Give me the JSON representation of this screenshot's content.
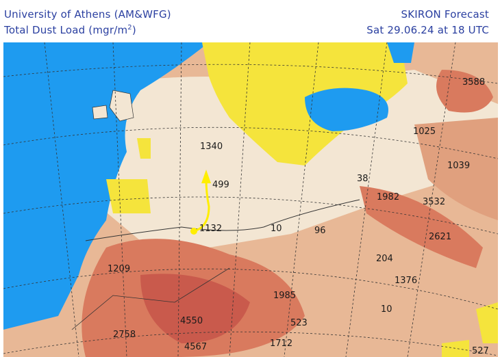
{
  "header": {
    "institution": "University of Athens (AM&WFG)",
    "product": "Total Dust Load (mgr/m",
    "product_superscript": "2",
    "product_close": ")",
    "model": "SKIRON Forecast",
    "valid_time": "Sat 29.06.24 at 18 UTC"
  },
  "colors": {
    "sea": "#1e9bf0",
    "low_dust_land": "#f5e43c",
    "light_dust": "#f3e6d3",
    "medium_dust": "#e8b896",
    "high_dust": "#d97a5e",
    "very_high_dust": "#c95a4c",
    "arrow": "#ffee00"
  },
  "map_labels": [
    "3588",
    "1025",
    "1039",
    "1340",
    "499",
    "38",
    "1982",
    "3532",
    "2621",
    "1132",
    "10",
    "96",
    "204",
    "1376",
    "1209",
    "1985",
    "10",
    "4550",
    "523",
    "2758",
    "4567",
    "1712",
    "527"
  ],
  "annotation": {
    "type": "arrow",
    "color": "yellow",
    "description_shown": false
  }
}
